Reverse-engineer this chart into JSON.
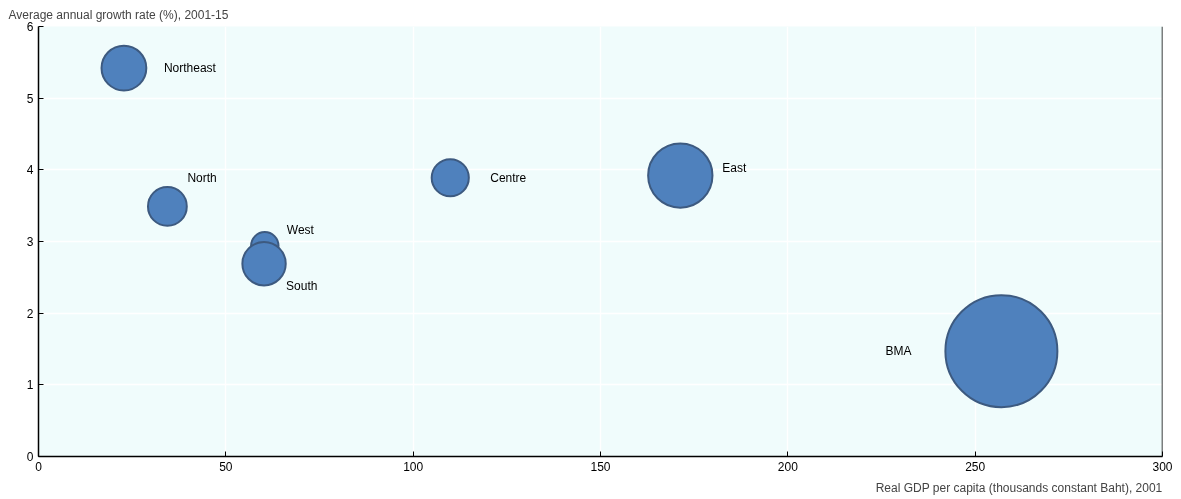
{
  "chart_data": {
    "type": "bubble",
    "ylabel": "Average annual growth rate (%), 2001-15",
    "xlabel": "Real GDP per capita (thousands constant Baht), 2001",
    "xlim": [
      0,
      300
    ],
    "xticks": [
      0,
      50,
      100,
      150,
      200,
      250,
      300
    ],
    "ylim": [
      0,
      6
    ],
    "yticks": [
      0,
      1,
      2,
      3,
      4,
      5,
      6
    ],
    "grid": true,
    "legend": false,
    "series": [
      {
        "name": "Northeast",
        "color": "#4f81bd",
        "x": [
          22.8
        ],
        "values": [
          5.42
        ],
        "sizes": [
          0.16
        ]
      },
      {
        "name": "North",
        "color": "#4f81bd",
        "x": [
          34.4
        ],
        "values": [
          3.49
        ],
        "sizes": [
          0.12
        ]
      },
      {
        "name": "West",
        "color": "#4f81bd",
        "x": [
          60.4
        ],
        "values": [
          2.94
        ],
        "sizes": [
          0.06
        ]
      },
      {
        "name": "South",
        "color": "#4f81bd",
        "x": [
          60.2
        ],
        "values": [
          2.69
        ],
        "sizes": [
          0.15
        ]
      },
      {
        "name": "Centre",
        "color": "#4f81bd",
        "x": [
          109.9
        ],
        "values": [
          3.89
        ],
        "sizes": [
          0.11
        ]
      },
      {
        "name": "East",
        "color": "#4f81bd",
        "x": [
          171.3
        ],
        "values": [
          3.92
        ],
        "sizes": [
          0.33
        ]
      },
      {
        "name": "BMA",
        "color": "#4f81bd",
        "x": [
          257
        ],
        "values": [
          1.47
        ],
        "sizes": [
          1
        ]
      }
    ]
  }
}
